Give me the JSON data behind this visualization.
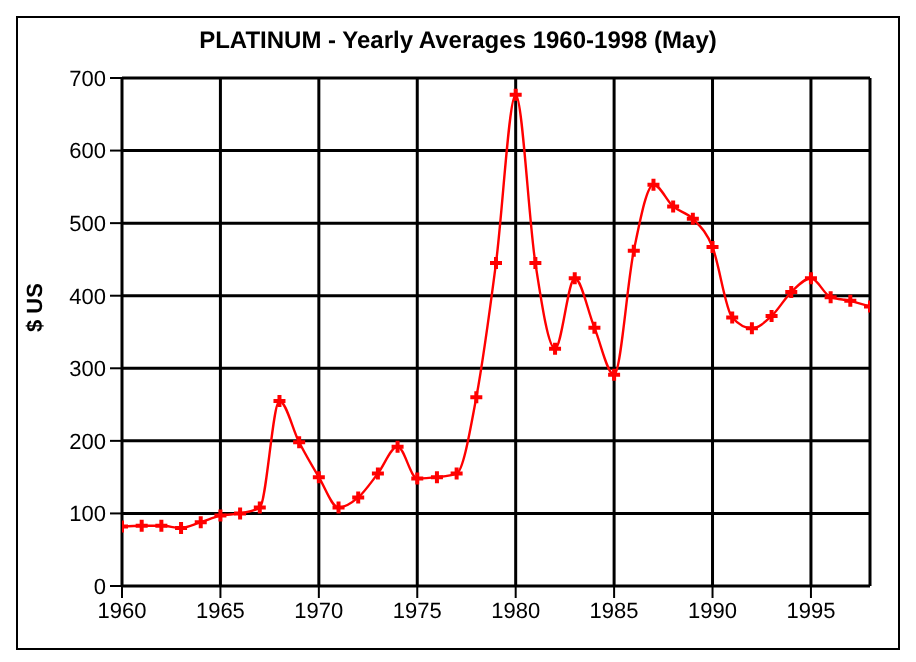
{
  "chart_data": {
    "type": "line",
    "title": "PLATINUM  - Yearly Averages 1960-1998 (May)",
    "ylabel": "$ US",
    "x": [
      1960,
      1961,
      1962,
      1963,
      1964,
      1965,
      1966,
      1967,
      1968,
      1969,
      1970,
      1971,
      1972,
      1973,
      1974,
      1975,
      1976,
      1977,
      1978,
      1979,
      1980,
      1981,
      1982,
      1983,
      1984,
      1985,
      1986,
      1987,
      1988,
      1989,
      1990,
      1991,
      1992,
      1993,
      1994,
      1995,
      1996,
      1997,
      1998
    ],
    "series": [
      {
        "color": "#ff0000",
        "values": [
          82,
          83,
          83,
          80,
          88,
          97,
          100,
          108,
          255,
          198,
          150,
          108,
          122,
          155,
          192,
          148,
          150,
          155,
          260,
          445,
          677,
          445,
          327,
          424,
          356,
          291,
          462,
          553,
          523,
          506,
          467,
          370,
          355,
          372,
          405,
          424,
          398,
          393,
          385
        ]
      }
    ],
    "xlim": [
      1960,
      1998
    ],
    "xticks": [
      1960,
      1965,
      1970,
      1975,
      1980,
      1985,
      1990,
      1995
    ],
    "ylim": [
      0,
      700
    ],
    "yticks": [
      0,
      100,
      200,
      300,
      400,
      500,
      600,
      700
    ],
    "grid": true,
    "marker": "cross",
    "line_style": "solid"
  }
}
